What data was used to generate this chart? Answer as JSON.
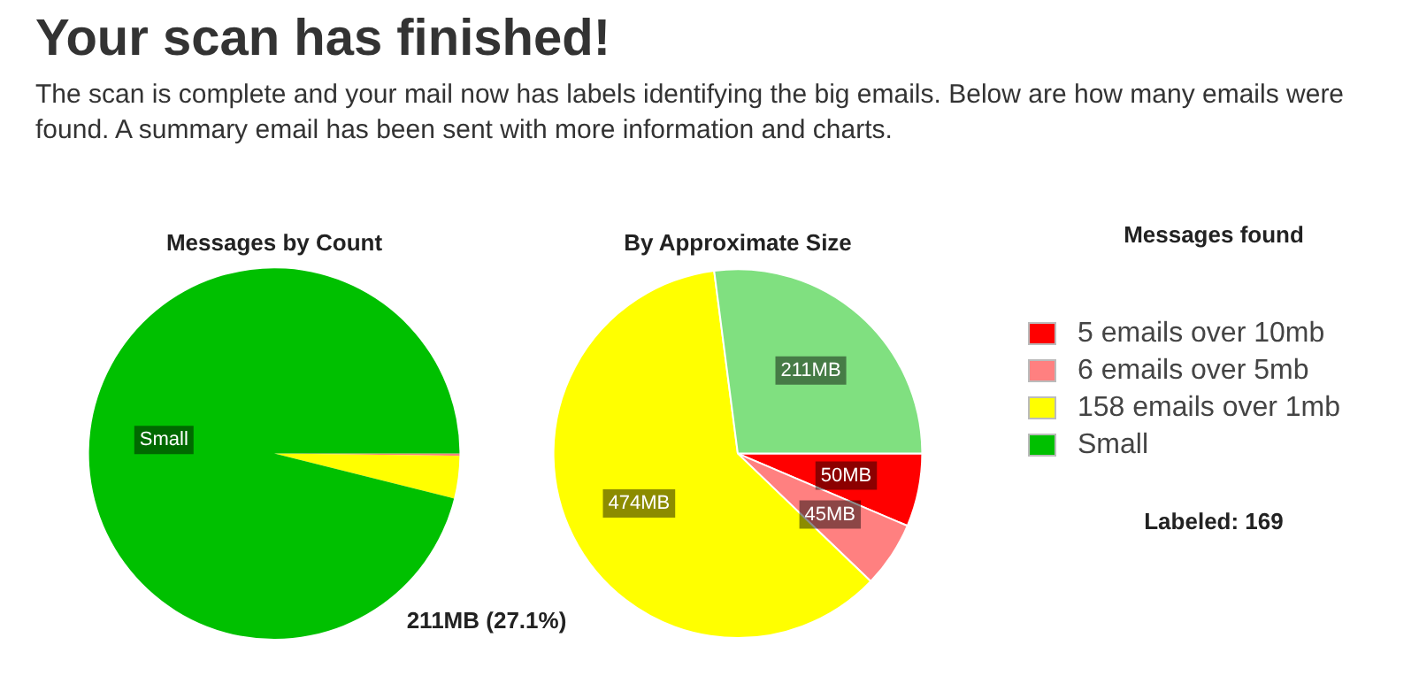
{
  "chart_data": [
    {
      "type": "other",
      "title": "Your scan has finished!",
      "subtitle": "The scan is complete and your mail now has labels identifying the big emails. Below are how many emails were found. A summary email has been sent with more information and charts."
    },
    {
      "type": "pie",
      "title": "Messages by Count",
      "categories": [
        "5 emails over 10mb",
        "6 emails over 5mb",
        "158 emails over 1mb",
        "Small"
      ],
      "values": [
        null,
        0.2,
        3.7,
        96.1
      ],
      "colors": [
        "#ff0000",
        "#ff8080",
        "#ffff00",
        "#00c000"
      ],
      "value_labels": [
        null,
        null,
        null,
        "Small"
      ],
      "legend": "right",
      "legend_title": "Messages found",
      "annotations": [
        "Labeled: 169"
      ]
    },
    {
      "type": "pie",
      "title": "By Approximate Size",
      "categories": [
        null,
        null,
        null,
        null
      ],
      "values": [
        50,
        45,
        474,
        211
      ],
      "colors": [
        "#ff0000",
        "#ff8080",
        "#ffff00",
        "#80e080"
      ],
      "value_labels": [
        "50MB",
        "45MB",
        "474MB",
        "211MB"
      ],
      "annotations": [
        "211MB (27.1%)"
      ]
    }
  ]
}
